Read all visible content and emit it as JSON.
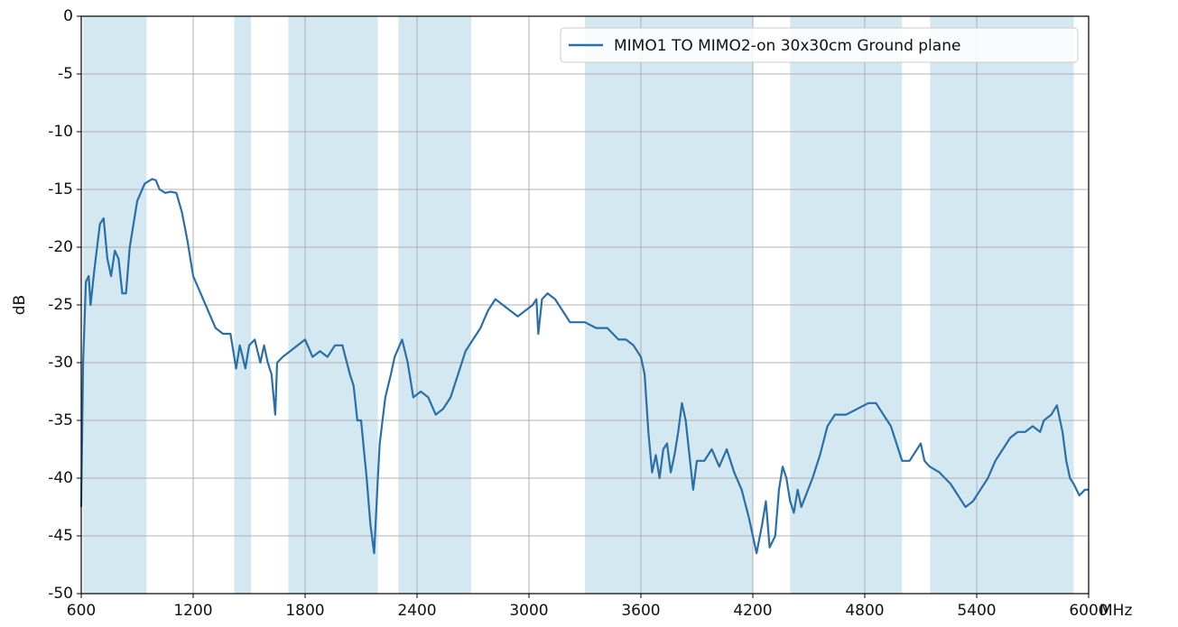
{
  "chart_data": {
    "type": "line",
    "xlabel": "MHz",
    "ylabel": "dB",
    "xlim": [
      600,
      6000
    ],
    "ylim": [
      -50,
      0
    ],
    "xticks": [
      600,
      1200,
      1800,
      2400,
      3000,
      3600,
      4200,
      4800,
      5400,
      6000
    ],
    "yticks": [
      0,
      -5,
      -10,
      -15,
      -20,
      -25,
      -30,
      -35,
      -40,
      -45,
      -50
    ],
    "grid": true,
    "legend": "upper right",
    "bands": [
      [
        610,
        950
      ],
      [
        1420,
        1510
      ],
      [
        1710,
        2190
      ],
      [
        2300,
        2690
      ],
      [
        3300,
        4200
      ],
      [
        4400,
        5000
      ],
      [
        5150,
        5920
      ]
    ],
    "band_color": "#d3e8f0",
    "x": [
      600,
      610,
      625,
      640,
      650,
      670,
      700,
      720,
      740,
      760,
      780,
      800,
      820,
      840,
      860,
      880,
      900,
      940,
      980,
      1000,
      1020,
      1050,
      1080,
      1110,
      1140,
      1170,
      1200,
      1240,
      1280,
      1320,
      1360,
      1400,
      1430,
      1450,
      1480,
      1500,
      1530,
      1560,
      1580,
      1600,
      1620,
      1640,
      1650,
      1680,
      1720,
      1760,
      1800,
      1840,
      1880,
      1920,
      1960,
      2000,
      2040,
      2060,
      2080,
      2100,
      2130,
      2150,
      2170,
      2190,
      2200,
      2230,
      2260,
      2280,
      2320,
      2350,
      2380,
      2420,
      2460,
      2500,
      2540,
      2580,
      2620,
      2660,
      2700,
      2740,
      2780,
      2820,
      2860,
      2900,
      2940,
      2980,
      3020,
      3040,
      3050,
      3070,
      3100,
      3140,
      3180,
      3220,
      3300,
      3360,
      3420,
      3480,
      3520,
      3560,
      3600,
      3620,
      3640,
      3660,
      3680,
      3700,
      3720,
      3740,
      3760,
      3780,
      3800,
      3820,
      3840,
      3860,
      3880,
      3900,
      3940,
      3980,
      4020,
      4060,
      4100,
      4140,
      4180,
      4220,
      4250,
      4270,
      4290,
      4320,
      4340,
      4360,
      4380,
      4400,
      4420,
      4440,
      4460,
      4520,
      4560,
      4600,
      4640,
      4700,
      4760,
      4820,
      4860,
      4900,
      4940,
      4980,
      5000,
      5040,
      5080,
      5100,
      5120,
      5148,
      5200,
      5260,
      5300,
      5340,
      5380,
      5420,
      5460,
      5500,
      5540,
      5580,
      5620,
      5660,
      5700,
      5740,
      5760,
      5800,
      5830,
      5860,
      5880,
      5900,
      5920,
      5950,
      5980,
      6000
    ],
    "series": [
      {
        "name": "MIMO1 TO MIMO2-on 30x30cm Ground plane",
        "color": "#2a6fa8",
        "values": [
          -42.5,
          -30,
          -23,
          -22.5,
          -25,
          -22,
          -18,
          -17.5,
          -21,
          -22.5,
          -20.3,
          -21,
          -24,
          -24,
          -20,
          -18,
          -16,
          -14.5,
          -14.1,
          -14.2,
          -15,
          -15.3,
          -15.2,
          -15.3,
          -17,
          -19.5,
          -22.5,
          -24,
          -25.5,
          -27,
          -27.5,
          -27.5,
          -30.5,
          -28.5,
          -30.5,
          -28.5,
          -28,
          -30,
          -28.5,
          -30,
          -31,
          -34.5,
          -30,
          -29.5,
          -29,
          -28.5,
          -28,
          -29.5,
          -29,
          -29.5,
          -28.5,
          -28.5,
          -31,
          -32,
          -35,
          -35,
          -40,
          -44,
          -46.5,
          -40,
          -37,
          -33,
          -31,
          -29.5,
          -28,
          -30,
          -33,
          -32.5,
          -33,
          -34.5,
          -34,
          -33,
          -31,
          -29,
          -28,
          -27,
          -25.5,
          -24.5,
          -25,
          -25.5,
          -26,
          -25.5,
          -25,
          -24.5,
          -27.5,
          -24.5,
          -24,
          -24.5,
          -25.5,
          -26.5,
          -26.5,
          -27,
          -27,
          -28,
          -28,
          -28.5,
          -29.5,
          -31,
          -36,
          -39.5,
          -38,
          -40,
          -37.5,
          -37,
          -39.5,
          -38,
          -36,
          -33.5,
          -35,
          -38,
          -41,
          -38.5,
          -38.5,
          -37.5,
          -39,
          -37.5,
          -39.5,
          -41,
          -43.5,
          -46.5,
          -44,
          -42,
          -46,
          -45,
          -41,
          -39,
          -40,
          -42,
          -43,
          -41,
          -42.5,
          -40,
          -38,
          -35.5,
          -34.5,
          -34.5,
          -34,
          -33.5,
          -33.5,
          -34.5,
          -35.5,
          -37.5,
          -38.5,
          -38.5,
          -37.5,
          -37,
          -38.5,
          -39,
          -39.5,
          -40.5,
          -41.5,
          -42.5,
          -42,
          -41,
          -40,
          -38.5,
          -37.5,
          -36.5,
          -36,
          -36,
          -35.5,
          -36,
          -35,
          -34.5,
          -33.7,
          -36,
          -38.5,
          -40,
          -40.5,
          -41.5,
          -41,
          -41
        ]
      }
    ]
  }
}
